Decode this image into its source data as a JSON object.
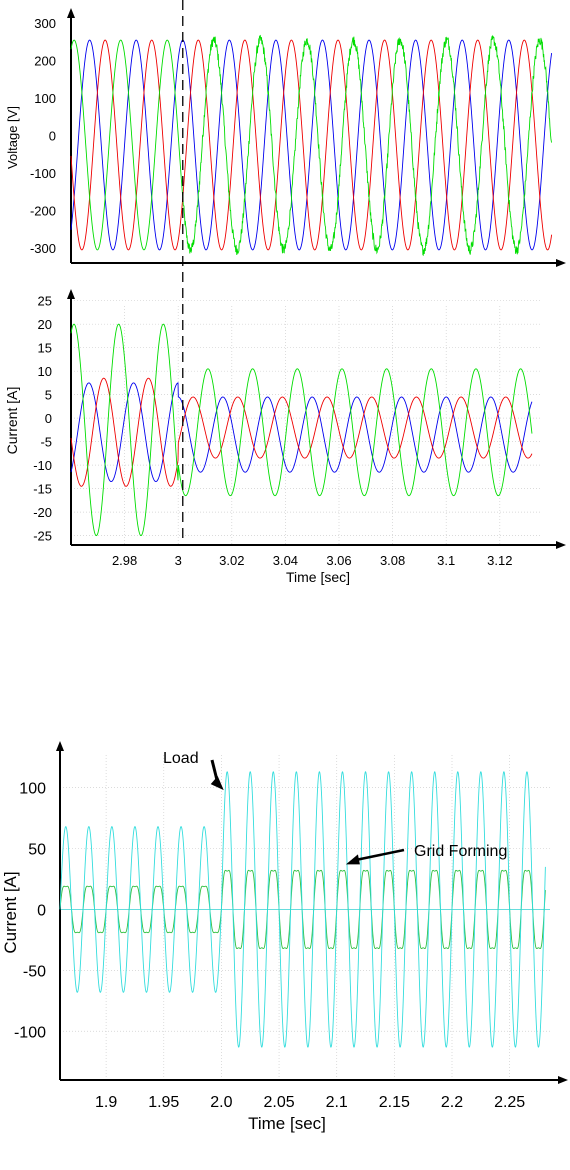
{
  "chart_data": [
    {
      "type": "line",
      "title": "",
      "xlabel": "",
      "ylabel": "Voltage [V]",
      "xlim": [
        2.96,
        3.135
      ],
      "ylim": [
        -340,
        330
      ],
      "yticks": [
        "300",
        "200",
        "100",
        "0",
        "-100",
        "-200",
        "-300"
      ],
      "grid": false,
      "frequency_hz": 60,
      "event_time": 3.0,
      "series": [
        {
          "color": "#0000ee",
          "amplitude_before": 280,
          "amplitude_after": 280,
          "phase_deg": 90
        },
        {
          "color": "#ee0000",
          "amplitude_before": 280,
          "amplitude_after": 280,
          "phase_deg": -30
        },
        {
          "color": "#00dd00",
          "amplitude_before": 280,
          "amplitude_after": 280,
          "phase_deg": 210,
          "noisy_after_event": true
        }
      ]
    },
    {
      "type": "line",
      "title": "",
      "xlabel": "Time [sec]",
      "ylabel": "Current [A]",
      "xlim": [
        2.96,
        3.135
      ],
      "ylim": [
        -27,
        26
      ],
      "yticks": [
        "25",
        "20",
        "15",
        "10",
        "5",
        "0",
        "-5",
        "-10",
        "-15",
        "-20",
        "-25"
      ],
      "xticks": [
        "2.98",
        "3",
        "3.02",
        "3.04",
        "3.06",
        "3.08",
        "3.1",
        "3.12"
      ],
      "grid": true,
      "frequency_hz": 60,
      "event_time": 3.0,
      "series": [
        {
          "color": "#0000ee",
          "offset_before": -3,
          "amplitude_before": 10.5,
          "offset_after": -3.5,
          "amplitude_after": 8,
          "phase_deg": 90
        },
        {
          "color": "#ee0000",
          "offset_before": -3,
          "amplitude_before": 11.5,
          "offset_after": -2,
          "amplitude_after": 6.5,
          "phase_deg": -30
        },
        {
          "color": "#00dd00",
          "offset_before": -2.5,
          "amplitude_before": 22.5,
          "offset_after": -3,
          "amplitude_after": 13.5,
          "phase_deg": 210
        }
      ]
    },
    {
      "type": "line",
      "title": "",
      "xlabel": "Time [sec]",
      "ylabel": "Current [A]",
      "xlim": [
        1.86,
        2.285
      ],
      "ylim": [
        -140,
        135
      ],
      "yticks": [
        "100",
        "50",
        "0",
        "-50",
        "-100"
      ],
      "xticks": [
        "1.9",
        "1.95",
        "2.0",
        "2.05",
        "2.1",
        "2.15",
        "2.2",
        "2.25"
      ],
      "grid": true,
      "frequency_hz": 50,
      "step_time": 2.0,
      "annotations": [
        {
          "text": "Load",
          "target_x": 2.002,
          "target_y": 98
        },
        {
          "text": "Grid Forming",
          "target_x": 2.108,
          "target_y": 37
        }
      ],
      "series": [
        {
          "name": "Load",
          "color": "#33dddd",
          "amplitude_before": 68,
          "amplitude_after": 113
        },
        {
          "name": "Grid Forming",
          "color": "#2fbf3f",
          "amplitude_before": 22,
          "amplitude_after": 37,
          "harmonic3_ratio": 0.15
        }
      ]
    }
  ]
}
